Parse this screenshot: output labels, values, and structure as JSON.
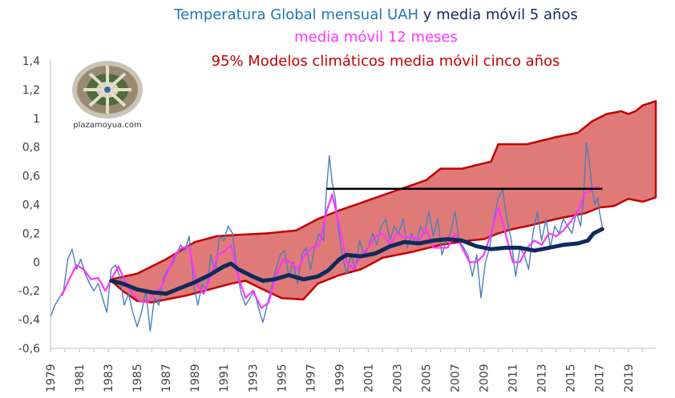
{
  "chart_data": {
    "type": "line",
    "title_parts": {
      "line1_a": "Temperatura Global mensual UAH",
      "line1_b": " y media móvil 5 años",
      "line2": "media móvil 12 meses",
      "line3": "95% Modelos climáticos media móvil cinco años"
    },
    "colors": {
      "monthly": "#4a7ebb",
      "ma12": "#ff33ff",
      "ma5": "#0e2a5c",
      "models_fill": "#e07a78",
      "models_edge": "#c00000",
      "title1": "#1f77b4",
      "title1b": "#0e2a5c",
      "title2": "#ff33ff",
      "title3": "#c00000",
      "hline": "#000000"
    },
    "xlim": [
      1979,
      2020.9
    ],
    "ylim": [
      -0.6,
      1.4
    ],
    "y_ticks": [
      "-0,6",
      "-0,4",
      "-0,2",
      "0",
      "0,2",
      "0,4",
      "0,6",
      "0,8",
      "1",
      "1,2",
      "1,4"
    ],
    "y_tick_values": [
      -0.6,
      -0.4,
      -0.2,
      0,
      0.2,
      0.4,
      0.6,
      0.8,
      1.0,
      1.2,
      1.4
    ],
    "x_ticks": [
      "1979",
      "1981",
      "1983",
      "1985",
      "1987",
      "1989",
      "1991",
      "1993",
      "1995",
      "1997",
      "1999",
      "2001",
      "2003",
      "2005",
      "2007",
      "2009",
      "2011",
      "2013",
      "2015",
      "2017",
      "2019"
    ],
    "x_tick_values": [
      1979,
      1981,
      1983,
      1985,
      1987,
      1989,
      1991,
      1993,
      1995,
      1997,
      1999,
      2001,
      2003,
      2005,
      2007,
      2009,
      2011,
      2013,
      2015,
      2017,
      2019
    ],
    "models_upper": [
      [
        1983.2,
        -0.12
      ],
      [
        1985,
        -0.08
      ],
      [
        1987,
        0.02
      ],
      [
        1989,
        0.14
      ],
      [
        1990.5,
        0.18
      ],
      [
        1992,
        0.19
      ],
      [
        1994,
        0.2
      ],
      [
        1996,
        0.22
      ],
      [
        1997.5,
        0.3
      ],
      [
        1999,
        0.36
      ],
      [
        2001,
        0.43
      ],
      [
        2003,
        0.5
      ],
      [
        2005,
        0.57
      ],
      [
        2006,
        0.65
      ],
      [
        2007.5,
        0.65
      ],
      [
        2009.5,
        0.7
      ],
      [
        2010,
        0.82
      ],
      [
        2012,
        0.82
      ],
      [
        2014,
        0.87
      ],
      [
        2015.5,
        0.9
      ],
      [
        2016.5,
        0.98
      ],
      [
        2017.5,
        1.03
      ],
      [
        2018.5,
        1.05
      ],
      [
        2019,
        1.03
      ],
      [
        2019.5,
        1.05
      ],
      [
        2020,
        1.09
      ],
      [
        2020.9,
        1.12
      ]
    ],
    "models_lower": [
      [
        2020.9,
        0.45
      ],
      [
        2020,
        0.42
      ],
      [
        2019,
        0.44
      ],
      [
        2018,
        0.39
      ],
      [
        2017,
        0.38
      ],
      [
        2016,
        0.34
      ],
      [
        2014,
        0.3
      ],
      [
        2012,
        0.25
      ],
      [
        2011,
        0.23
      ],
      [
        2010,
        0.2
      ],
      [
        2009,
        0.16
      ],
      [
        2008,
        0.15
      ],
      [
        2006,
        0.12
      ],
      [
        2004,
        0.07
      ],
      [
        2002,
        0.03
      ],
      [
        2000.5,
        -0.05
      ],
      [
        1999,
        -0.09
      ],
      [
        1997.5,
        -0.15
      ],
      [
        1996.5,
        -0.26
      ],
      [
        1995,
        -0.25
      ],
      [
        1993.5,
        -0.18
      ],
      [
        1992.5,
        -0.13
      ],
      [
        1991.5,
        -0.15
      ],
      [
        1990,
        -0.19
      ],
      [
        1988.5,
        -0.23
      ],
      [
        1987,
        -0.26
      ],
      [
        1986,
        -0.28
      ],
      [
        1985,
        -0.27
      ],
      [
        1984,
        -0.2
      ],
      [
        1983.2,
        -0.13
      ]
    ],
    "hline": {
      "x": [
        1998.1,
        2017.2
      ],
      "y": 0.51
    },
    "ma5": [
      [
        1983.2,
        -0.13
      ],
      [
        1984,
        -0.15
      ],
      [
        1985,
        -0.19
      ],
      [
        1986,
        -0.21
      ],
      [
        1987,
        -0.22
      ],
      [
        1988,
        -0.18
      ],
      [
        1989,
        -0.14
      ],
      [
        1990,
        -0.09
      ],
      [
        1991,
        -0.03
      ],
      [
        1991.5,
        -0.01
      ],
      [
        1992,
        -0.05
      ],
      [
        1993,
        -0.1
      ],
      [
        1993.7,
        -0.13
      ],
      [
        1994.5,
        -0.12
      ],
      [
        1995.5,
        -0.09
      ],
      [
        1996.5,
        -0.12
      ],
      [
        1997.5,
        -0.1
      ],
      [
        1998.2,
        -0.06
      ],
      [
        1999,
        0.02
      ],
      [
        1999.5,
        0.05
      ],
      [
        2000.5,
        0.04
      ],
      [
        2001.5,
        0.06
      ],
      [
        2002.5,
        0.11
      ],
      [
        2003.5,
        0.14
      ],
      [
        2004.5,
        0.13
      ],
      [
        2005.5,
        0.15
      ],
      [
        2006.5,
        0.16
      ],
      [
        2007.5,
        0.15
      ],
      [
        2008.5,
        0.11
      ],
      [
        2009.5,
        0.09
      ],
      [
        2010.5,
        0.1
      ],
      [
        2011.5,
        0.1
      ],
      [
        2012.5,
        0.08
      ],
      [
        2013.5,
        0.1
      ],
      [
        2014.5,
        0.12
      ],
      [
        2015.5,
        0.13
      ],
      [
        2016.2,
        0.15
      ],
      [
        2016.6,
        0.2
      ],
      [
        2017,
        0.22
      ],
      [
        2017.2,
        0.23
      ]
    ],
    "ma12": [
      [
        1979.8,
        -0.23
      ],
      [
        1980.3,
        -0.12
      ],
      [
        1980.8,
        -0.02
      ],
      [
        1981.3,
        -0.05
      ],
      [
        1981.8,
        -0.12
      ],
      [
        1982.3,
        -0.11
      ],
      [
        1982.8,
        -0.2
      ],
      [
        1983.2,
        -0.12
      ],
      [
        1983.7,
        -0.03
      ],
      [
        1984.2,
        -0.14
      ],
      [
        1984.7,
        -0.23
      ],
      [
        1985.2,
        -0.27
      ],
      [
        1985.7,
        -0.28
      ],
      [
        1986.2,
        -0.22
      ],
      [
        1986.7,
        -0.17
      ],
      [
        1987.2,
        -0.05
      ],
      [
        1987.6,
        0.05
      ],
      [
        1988.1,
        0.1
      ],
      [
        1988.6,
        0.11
      ],
      [
        1989.1,
        -0.15
      ],
      [
        1989.6,
        -0.22
      ],
      [
        1990.1,
        -0.1
      ],
      [
        1990.6,
        0.05
      ],
      [
        1991.1,
        0.08
      ],
      [
        1991.5,
        0.12
      ],
      [
        1992,
        -0.1
      ],
      [
        1992.5,
        -0.25
      ],
      [
        1993,
        -0.2
      ],
      [
        1993.6,
        -0.32
      ],
      [
        1994.1,
        -0.28
      ],
      [
        1994.6,
        -0.1
      ],
      [
        1995.1,
        0.02
      ],
      [
        1995.6,
        0.0
      ],
      [
        1996.1,
        -0.05
      ],
      [
        1996.6,
        0.05
      ],
      [
        1997.1,
        0.1
      ],
      [
        1997.6,
        0.12
      ],
      [
        1998.1,
        0.35
      ],
      [
        1998.5,
        0.47
      ],
      [
        1999,
        0.25
      ],
      [
        1999.5,
        0.0
      ],
      [
        2000,
        -0.05
      ],
      [
        2000.5,
        0.05
      ],
      [
        2001,
        0.1
      ],
      [
        2001.5,
        0.18
      ],
      [
        2002,
        0.2
      ],
      [
        2002.5,
        0.12
      ],
      [
        2003,
        0.2
      ],
      [
        2003.5,
        0.17
      ],
      [
        2004,
        0.18
      ],
      [
        2004.5,
        0.15
      ],
      [
        2005,
        0.23
      ],
      [
        2005.5,
        0.1
      ],
      [
        2006,
        0.1
      ],
      [
        2006.5,
        0.1
      ],
      [
        2007,
        0.2
      ],
      [
        2007.5,
        0.1
      ],
      [
        2008,
        0.0
      ],
      [
        2008.5,
        0.0
      ],
      [
        2009,
        0.05
      ],
      [
        2009.5,
        0.2
      ],
      [
        2010,
        0.38
      ],
      [
        2010.5,
        0.2
      ],
      [
        2011,
        0.0
      ],
      [
        2011.5,
        0.0
      ],
      [
        2012,
        0.1
      ],
      [
        2012.5,
        0.15
      ],
      [
        2013,
        0.12
      ],
      [
        2013.5,
        0.2
      ],
      [
        2014,
        0.18
      ],
      [
        2014.5,
        0.22
      ],
      [
        2015,
        0.28
      ],
      [
        2015.5,
        0.35
      ],
      [
        2016,
        0.48
      ],
      [
        2016.5,
        0.5
      ],
      [
        2016.8,
        0.52
      ],
      [
        2017,
        0.52
      ]
    ],
    "monthly": [
      [
        1979.0,
        -0.38
      ],
      [
        1979.3,
        -0.3
      ],
      [
        1979.6,
        -0.25
      ],
      [
        1979.9,
        -0.2
      ],
      [
        1980.2,
        0.02
      ],
      [
        1980.5,
        0.09
      ],
      [
        1980.8,
        -0.05
      ],
      [
        1981.1,
        0.02
      ],
      [
        1981.4,
        -0.08
      ],
      [
        1981.7,
        -0.15
      ],
      [
        1982.0,
        -0.2
      ],
      [
        1982.3,
        -0.15
      ],
      [
        1982.6,
        -0.25
      ],
      [
        1982.9,
        -0.35
      ],
      [
        1983.2,
        -0.05
      ],
      [
        1983.5,
        -0.02
      ],
      [
        1983.8,
        -0.1
      ],
      [
        1984.1,
        -0.3
      ],
      [
        1984.4,
        -0.22
      ],
      [
        1984.7,
        -0.35
      ],
      [
        1985.0,
        -0.45
      ],
      [
        1985.3,
        -0.35
      ],
      [
        1985.6,
        -0.2
      ],
      [
        1985.9,
        -0.48
      ],
      [
        1986.2,
        -0.25
      ],
      [
        1986.5,
        -0.3
      ],
      [
        1986.8,
        -0.12
      ],
      [
        1987.1,
        -0.05
      ],
      [
        1987.4,
        -0.02
      ],
      [
        1987.7,
        0.05
      ],
      [
        1988.0,
        0.12
      ],
      [
        1988.3,
        0.08
      ],
      [
        1988.6,
        0.18
      ],
      [
        1988.9,
        -0.15
      ],
      [
        1989.2,
        -0.3
      ],
      [
        1989.5,
        -0.15
      ],
      [
        1989.8,
        -0.2
      ],
      [
        1990.1,
        0.05
      ],
      [
        1990.4,
        -0.08
      ],
      [
        1990.7,
        0.18
      ],
      [
        1991.0,
        0.15
      ],
      [
        1991.3,
        0.25
      ],
      [
        1991.6,
        0.2
      ],
      [
        1991.9,
        -0.05
      ],
      [
        1992.2,
        -0.22
      ],
      [
        1992.5,
        -0.3
      ],
      [
        1992.8,
        -0.25
      ],
      [
        1993.1,
        -0.2
      ],
      [
        1993.4,
        -0.32
      ],
      [
        1993.7,
        -0.42
      ],
      [
        1994.0,
        -0.3
      ],
      [
        1994.3,
        -0.18
      ],
      [
        1994.6,
        -0.05
      ],
      [
        1994.9,
        0.05
      ],
      [
        1995.2,
        0.08
      ],
      [
        1995.5,
        -0.1
      ],
      [
        1995.8,
        0.0
      ],
      [
        1996.1,
        -0.15
      ],
      [
        1996.4,
        0.05
      ],
      [
        1996.7,
        0.1
      ],
      [
        1997.0,
        -0.05
      ],
      [
        1997.3,
        0.1
      ],
      [
        1997.6,
        0.2
      ],
      [
        1997.9,
        0.15
      ],
      [
        1998.1,
        0.5
      ],
      [
        1998.3,
        0.74
      ],
      [
        1998.5,
        0.55
      ],
      [
        1998.7,
        0.45
      ],
      [
        1998.9,
        0.25
      ],
      [
        1999.2,
        0.05
      ],
      [
        1999.5,
        -0.08
      ],
      [
        1999.8,
        0.05
      ],
      [
        2000.1,
        -0.05
      ],
      [
        2000.4,
        0.15
      ],
      [
        2000.7,
        0.05
      ],
      [
        2001.0,
        0.1
      ],
      [
        2001.3,
        0.2
      ],
      [
        2001.6,
        0.12
      ],
      [
        2001.9,
        0.25
      ],
      [
        2002.2,
        0.3
      ],
      [
        2002.5,
        0.15
      ],
      [
        2002.8,
        0.25
      ],
      [
        2003.1,
        0.2
      ],
      [
        2003.4,
        0.3
      ],
      [
        2003.7,
        0.1
      ],
      [
        2004.0,
        0.2
      ],
      [
        2004.3,
        0.12
      ],
      [
        2004.6,
        0.25
      ],
      [
        2004.9,
        0.2
      ],
      [
        2005.2,
        0.35
      ],
      [
        2005.5,
        0.18
      ],
      [
        2005.8,
        0.3
      ],
      [
        2006.1,
        0.05
      ],
      [
        2006.4,
        0.15
      ],
      [
        2006.7,
        0.2
      ],
      [
        2007.0,
        0.35
      ],
      [
        2007.3,
        0.15
      ],
      [
        2007.6,
        0.1
      ],
      [
        2007.9,
        0.05
      ],
      [
        2008.2,
        -0.1
      ],
      [
        2008.5,
        0.05
      ],
      [
        2008.8,
        -0.25
      ],
      [
        2009.1,
        0.0
      ],
      [
        2009.4,
        0.1
      ],
      [
        2009.7,
        0.3
      ],
      [
        2010.0,
        0.45
      ],
      [
        2010.3,
        0.5
      ],
      [
        2010.6,
        0.3
      ],
      [
        2010.9,
        0.15
      ],
      [
        2011.2,
        -0.1
      ],
      [
        2011.5,
        0.1
      ],
      [
        2011.8,
        0.05
      ],
      [
        2012.1,
        -0.05
      ],
      [
        2012.4,
        0.2
      ],
      [
        2012.7,
        0.35
      ],
      [
        2013.0,
        0.15
      ],
      [
        2013.3,
        0.3
      ],
      [
        2013.6,
        0.1
      ],
      [
        2013.9,
        0.25
      ],
      [
        2014.2,
        0.2
      ],
      [
        2014.5,
        0.3
      ],
      [
        2014.8,
        0.25
      ],
      [
        2015.1,
        0.2
      ],
      [
        2015.4,
        0.35
      ],
      [
        2015.7,
        0.25
      ],
      [
        2015.9,
        0.45
      ],
      [
        2016.1,
        0.83
      ],
      [
        2016.3,
        0.7
      ],
      [
        2016.5,
        0.5
      ],
      [
        2016.7,
        0.4
      ],
      [
        2016.9,
        0.45
      ],
      [
        2017.0,
        0.35
      ],
      [
        2017.2,
        0.25
      ]
    ]
  }
}
